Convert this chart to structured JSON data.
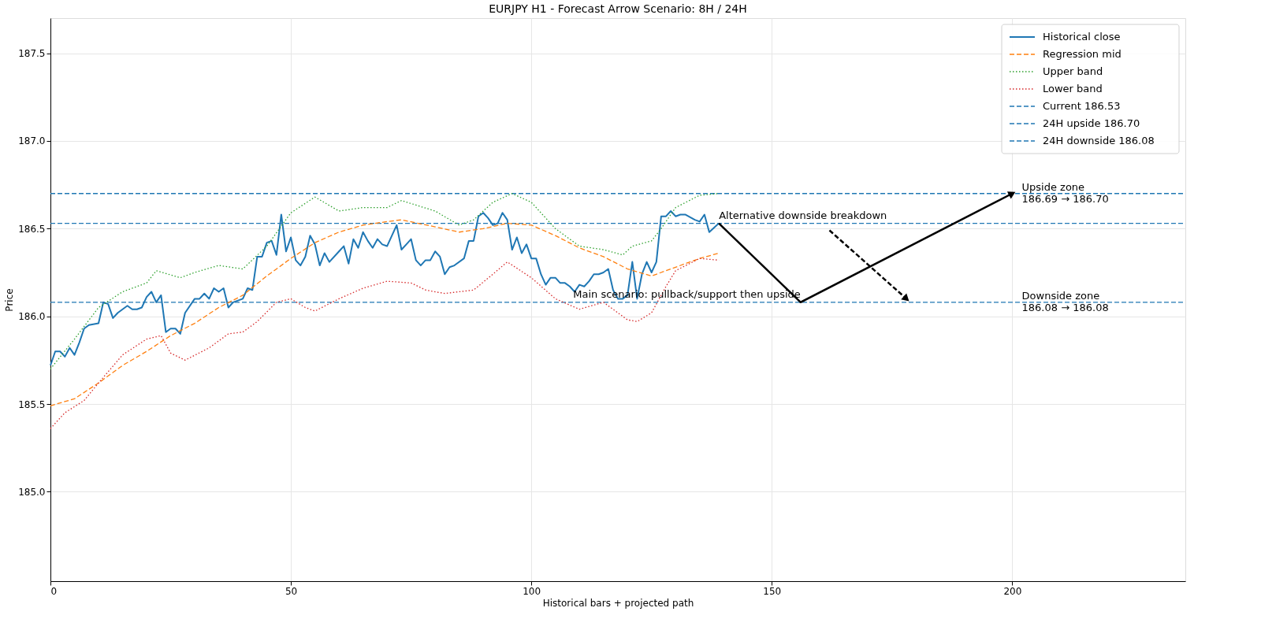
{
  "chart_data": {
    "type": "line",
    "title": "EURJPY H1 - Forecast Arrow Scenario: 8H / 24H",
    "xlabel": "Historical bars + projected path",
    "ylabel": "Price",
    "xlim": [
      0,
      236
    ],
    "xticks": [
      0,
      50,
      100,
      150,
      200
    ],
    "ylim": [
      184.49,
      187.7
    ],
    "yticks": [
      {
        "value": 185,
        "label": "185.0"
      },
      {
        "value": 185.5,
        "label": "185.5"
      },
      {
        "value": 186,
        "label": "186.0"
      },
      {
        "value": 186.5,
        "label": "186.5"
      },
      {
        "value": 187,
        "label": "187.0"
      },
      {
        "value": 187.5,
        "label": "187.5"
      }
    ],
    "grid": true,
    "legend": "top right",
    "series": [
      {
        "name": "Historical close",
        "color": "#1f77b4",
        "line_style": "solid",
        "x": [
          0,
          1,
          2,
          3,
          4,
          5,
          6,
          7,
          8,
          10,
          11,
          12,
          13,
          14,
          16,
          17,
          18,
          19,
          20,
          21,
          22,
          23,
          24,
          25,
          26,
          27,
          28,
          30,
          31,
          32,
          33,
          34,
          35,
          36,
          37,
          38,
          40,
          41,
          42,
          43,
          44,
          45,
          46,
          47,
          48,
          49,
          50,
          51,
          52,
          53,
          54,
          55,
          56,
          57,
          58,
          60,
          61,
          62,
          63,
          64,
          65,
          66,
          67,
          68,
          69,
          70,
          72,
          73,
          74,
          75,
          76,
          77,
          78,
          79,
          80,
          81,
          82,
          83,
          84,
          86,
          87,
          88,
          89,
          90,
          91,
          92,
          93,
          94,
          95,
          96,
          97,
          98,
          99,
          100,
          101,
          102,
          103,
          104,
          105,
          106,
          107,
          108,
          109,
          110,
          111,
          112,
          113,
          114,
          115,
          116,
          117,
          118,
          119,
          120,
          121,
          122,
          123,
          124,
          125,
          126,
          127,
          128,
          129,
          130,
          131,
          132,
          134,
          135,
          136,
          137,
          139
        ],
        "values": [
          185.72,
          185.8,
          185.8,
          185.77,
          185.82,
          185.78,
          185.85,
          185.93,
          185.95,
          185.96,
          186.08,
          186.07,
          185.99,
          186.02,
          186.06,
          186.04,
          186.04,
          186.05,
          186.11,
          186.14,
          186.08,
          186.12,
          185.91,
          185.93,
          185.93,
          185.9,
          186.02,
          186.1,
          186.1,
          186.13,
          186.1,
          186.16,
          186.14,
          186.16,
          186.05,
          186.08,
          186.1,
          186.16,
          186.15,
          186.34,
          186.34,
          186.42,
          186.43,
          186.35,
          186.58,
          186.37,
          186.45,
          186.32,
          186.29,
          186.34,
          186.46,
          186.41,
          186.29,
          186.36,
          186.31,
          186.37,
          186.4,
          186.3,
          186.44,
          186.39,
          186.48,
          186.43,
          186.39,
          186.44,
          186.41,
          186.4,
          186.52,
          186.38,
          186.41,
          186.44,
          186.32,
          186.29,
          186.32,
          186.32,
          186.37,
          186.34,
          186.24,
          186.28,
          186.29,
          186.33,
          186.43,
          186.43,
          186.57,
          186.59,
          186.56,
          186.52,
          186.53,
          186.59,
          186.55,
          186.38,
          186.45,
          186.36,
          186.41,
          186.33,
          186.33,
          186.24,
          186.18,
          186.22,
          186.22,
          186.19,
          186.19,
          186.17,
          186.14,
          186.18,
          186.17,
          186.2,
          186.24,
          186.24,
          186.25,
          186.27,
          186.15,
          186.1,
          186.1,
          186.12,
          186.31,
          186.1,
          186.24,
          186.31,
          186.25,
          186.31,
          186.57,
          186.57,
          186.6,
          186.57,
          186.58,
          186.58,
          186.55,
          186.54,
          186.58,
          186.48,
          186.53
        ]
      },
      {
        "name": "Regression mid",
        "color": "#ff7f0e",
        "line_style": "dashed",
        "x": [
          0,
          5,
          10,
          15,
          20,
          25,
          30,
          35,
          40,
          45,
          50,
          55,
          60,
          65,
          70,
          73,
          80,
          85,
          90,
          95,
          100,
          105,
          110,
          115,
          120,
          125,
          130,
          135,
          139
        ],
        "values": [
          185.49,
          185.53,
          185.62,
          185.72,
          185.8,
          185.89,
          185.96,
          186.05,
          186.12,
          186.23,
          186.33,
          186.42,
          186.48,
          186.52,
          186.54,
          186.55,
          186.51,
          186.48,
          186.5,
          186.53,
          186.52,
          186.46,
          186.39,
          186.34,
          186.27,
          186.23,
          186.28,
          186.33,
          186.36
        ]
      },
      {
        "name": "Upper band",
        "color": "#2ca02c",
        "line_style": "dotted",
        "x": [
          0,
          5,
          10,
          15,
          20,
          22,
          27,
          30,
          35,
          40,
          45,
          50,
          55,
          60,
          65,
          70,
          73,
          80,
          85,
          88,
          92,
          96,
          100,
          105,
          110,
          115,
          119,
          121,
          125,
          127,
          130,
          135,
          139
        ],
        "values": [
          185.7,
          185.87,
          186.05,
          186.14,
          186.19,
          186.26,
          186.22,
          186.25,
          186.29,
          186.27,
          186.4,
          186.59,
          186.68,
          186.6,
          186.62,
          186.62,
          186.66,
          186.6,
          186.52,
          186.55,
          186.65,
          186.7,
          186.65,
          186.5,
          186.4,
          186.38,
          186.35,
          186.4,
          186.43,
          186.5,
          186.62,
          186.69,
          186.7
        ]
      },
      {
        "name": "Lower band",
        "color": "#d62728",
        "line_style": "dotted",
        "x": [
          0,
          3,
          7,
          10,
          15,
          20,
          23,
          25,
          28,
          33,
          37,
          40,
          43,
          47,
          50,
          53,
          55,
          60,
          65,
          70,
          75,
          78,
          82,
          88,
          92,
          95,
          100,
          105,
          110,
          115,
          120,
          122,
          125,
          128,
          130,
          135,
          139
        ],
        "values": [
          185.36,
          185.45,
          185.52,
          185.62,
          185.78,
          185.87,
          185.89,
          185.79,
          185.75,
          185.82,
          185.9,
          185.91,
          185.97,
          186.08,
          186.1,
          186.05,
          186.03,
          186.1,
          186.16,
          186.2,
          186.19,
          186.15,
          186.13,
          186.15,
          186.24,
          186.31,
          186.22,
          186.1,
          186.04,
          186.08,
          185.98,
          185.97,
          186.02,
          186.17,
          186.26,
          186.33,
          186.32
        ]
      },
      {
        "color": "#000000",
        "line_style": "solid",
        "x": [
          139,
          156,
          200
        ],
        "values": [
          186.53,
          186.08,
          186.7
        ]
      },
      {
        "color": "#000000",
        "line_style": "dashed",
        "x": [
          162,
          178
        ],
        "values": [
          186.49,
          186.1
        ]
      }
    ],
    "ref_lines": [
      {
        "axis": "y",
        "value": 186.53,
        "label": "Current 186.53",
        "color": "#1f77b4",
        "line_style": "dashed"
      },
      {
        "axis": "y",
        "value": 186.7,
        "label": "24H upside 186.70",
        "color": "#1f77b4",
        "line_style": "dashed"
      },
      {
        "axis": "y",
        "value": 186.08,
        "label": "24H downside 186.08",
        "color": "#1f77b4",
        "line_style": "dashed"
      }
    ],
    "annotations": [
      {
        "text": "Main scenario: pullback/support then upside",
        "x": 156,
        "y": 186.1
      },
      {
        "text": "Alternative downside breakdown",
        "x": 139,
        "y": 186.55
      },
      {
        "text": "Upside zone\n186.69 → 186.70",
        "x": 202,
        "y": 186.7
      },
      {
        "text": "Downside zone\n186.08 → 186.08",
        "x": 202,
        "y": 186.08
      }
    ]
  }
}
